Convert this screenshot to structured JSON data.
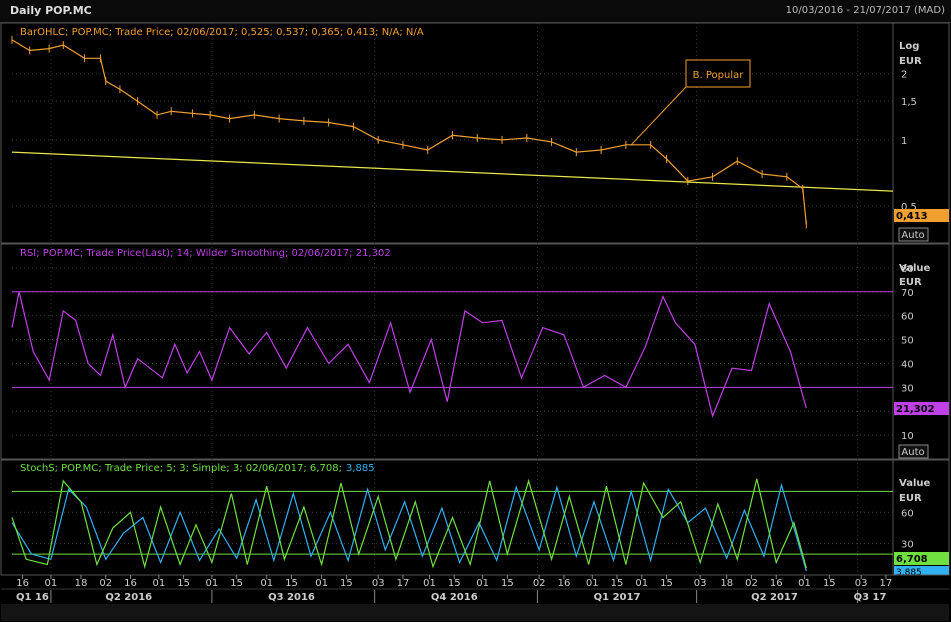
{
  "header": {
    "title": "Daily POP.MC",
    "range": "10/03/2016 - 21/07/2017 (MAD)"
  },
  "colors": {
    "price": "#f0a030",
    "trend": "#e8e84a",
    "rsi": "#c040e8",
    "stoch_k": "#70e040",
    "stoch_d": "#30b0f0",
    "grid": "#3a3a3a"
  },
  "chart_data": [
    {
      "type": "line",
      "subtype": "ohlc",
      "legend": "BarOHLC; POP.MC; Trade Price;  02/06/2017; 0,525; 0,537; 0,365; 0,413; N/A; N/A",
      "axis_title": "Log",
      "unit": "EUR",
      "scale": "log",
      "yticks": [
        "2",
        "1,5",
        "1",
        "0,5"
      ],
      "ytick_values": [
        2,
        1.5,
        1,
        0.5
      ],
      "ylim": [
        0.34,
        3.4
      ],
      "last_value": "0,413",
      "annotation": "B. Popular",
      "auto_button": "Auto",
      "series": [
        {
          "name": "Trade Price",
          "x": [
            "2016-03-10",
            "2016-03-20",
            "2016-03-31",
            "2016-04-08",
            "2016-04-20",
            "2016-04-29",
            "2016-05-02",
            "2016-05-10",
            "2016-05-20",
            "2016-05-31",
            "2016-06-08",
            "2016-06-20",
            "2016-06-30",
            "2016-07-11",
            "2016-07-25",
            "2016-08-08",
            "2016-08-22",
            "2016-09-05",
            "2016-09-19",
            "2016-10-03",
            "2016-10-17",
            "2016-10-31",
            "2016-11-14",
            "2016-11-28",
            "2016-12-12",
            "2016-12-26",
            "2017-01-09",
            "2017-01-23",
            "2017-02-06",
            "2017-02-20",
            "2017-03-06",
            "2017-03-15",
            "2017-03-27",
            "2017-04-10",
            "2017-04-24",
            "2017-05-08",
            "2017-05-22",
            "2017-05-31",
            "2017-06-02"
          ],
          "values": [
            2.85,
            2.55,
            2.6,
            2.7,
            2.35,
            2.35,
            1.85,
            1.7,
            1.5,
            1.3,
            1.35,
            1.32,
            1.3,
            1.25,
            1.3,
            1.25,
            1.22,
            1.2,
            1.15,
            1.0,
            0.95,
            0.9,
            1.05,
            1.02,
            1.0,
            1.02,
            0.98,
            0.88,
            0.9,
            0.95,
            0.95,
            0.82,
            0.65,
            0.68,
            0.8,
            0.7,
            0.68,
            0.6,
            0.413
          ]
        }
      ],
      "trendline": {
        "start": [
          "2016-03-10",
          0.88
        ],
        "end": [
          "2017-07-21",
          0.585
        ]
      }
    },
    {
      "type": "line",
      "legend": "RSI; POP.MC; Trade Price(Last);  14; Wilder Smoothing; 02/06/2017; 21,302",
      "axis_title": "Value",
      "unit": "EUR",
      "yticks": [
        "80",
        "70",
        "60",
        "50",
        "40",
        "30",
        "20",
        "10"
      ],
      "ytick_values": [
        80,
        70,
        60,
        50,
        40,
        30,
        20,
        10
      ],
      "ylim": [
        0,
        90
      ],
      "levels": [
        70,
        30
      ],
      "last_value": "21,302",
      "auto_button": "Auto",
      "series": [
        {
          "name": "RSI",
          "x": [
            "2016-03-10",
            "2016-03-14",
            "2016-03-22",
            "2016-03-31",
            "2016-04-08",
            "2016-04-15",
            "2016-04-22",
            "2016-04-29",
            "2016-05-06",
            "2016-05-13",
            "2016-05-20",
            "2016-05-27",
            "2016-06-03",
            "2016-06-10",
            "2016-06-17",
            "2016-06-24",
            "2016-07-01",
            "2016-07-11",
            "2016-07-22",
            "2016-08-01",
            "2016-08-12",
            "2016-08-24",
            "2016-09-05",
            "2016-09-16",
            "2016-09-28",
            "2016-10-10",
            "2016-10-21",
            "2016-11-02",
            "2016-11-11",
            "2016-11-21",
            "2016-12-01",
            "2016-12-12",
            "2016-12-23",
            "2017-01-04",
            "2017-01-16",
            "2017-01-27",
            "2017-02-08",
            "2017-02-20",
            "2017-03-03",
            "2017-03-13",
            "2017-03-20",
            "2017-03-31",
            "2017-04-10",
            "2017-04-21",
            "2017-05-02",
            "2017-05-12",
            "2017-05-24",
            "2017-06-02"
          ],
          "values": [
            55,
            70,
            45,
            33,
            62,
            58,
            40,
            35,
            52,
            30,
            42,
            38,
            34,
            48,
            36,
            45,
            33,
            55,
            44,
            53,
            38,
            55,
            40,
            48,
            32,
            57,
            28,
            50,
            24,
            62,
            57,
            58,
            34,
            55,
            52,
            30,
            35,
            30,
            47,
            68,
            57,
            48,
            18,
            38,
            37,
            65,
            45,
            21.3
          ]
        }
      ]
    },
    {
      "type": "line",
      "legend": "StochS; POP.MC; Trade Price;  5; 3; Simple; 3; 02/06/2017; 6,708;",
      "legend_extra": "3,885",
      "axis_title": "Value",
      "unit": "EUR",
      "yticks": [
        "60",
        "30"
      ],
      "ytick_values": [
        60,
        30
      ],
      "ylim": [
        0,
        110
      ],
      "levels": [
        80,
        20
      ],
      "last_value": "6,708",
      "last_value_2": "3,885",
      "series": [
        {
          "name": "%K",
          "x": [
            "2016-03-10",
            "2016-03-18",
            "2016-03-30",
            "2016-04-08",
            "2016-04-18",
            "2016-04-27",
            "2016-05-06",
            "2016-05-16",
            "2016-05-24",
            "2016-06-02",
            "2016-06-13",
            "2016-06-22",
            "2016-07-01",
            "2016-07-12",
            "2016-07-21",
            "2016-08-01",
            "2016-08-11",
            "2016-08-22",
            "2016-09-01",
            "2016-09-12",
            "2016-09-22",
            "2016-10-03",
            "2016-10-13",
            "2016-10-24",
            "2016-11-03",
            "2016-11-14",
            "2016-11-24",
            "2016-12-05",
            "2016-12-15",
            "2016-12-27",
            "2017-01-09",
            "2017-01-19",
            "2017-01-30",
            "2017-02-09",
            "2017-02-20",
            "2017-03-02",
            "2017-03-13",
            "2017-03-23",
            "2017-04-03",
            "2017-04-13",
            "2017-04-24",
            "2017-05-05",
            "2017-05-16",
            "2017-05-26",
            "2017-06-02"
          ],
          "values": [
            55,
            15,
            10,
            90,
            70,
            10,
            45,
            60,
            8,
            65,
            10,
            48,
            12,
            78,
            10,
            85,
            15,
            65,
            10,
            88,
            20,
            75,
            15,
            70,
            8,
            55,
            10,
            90,
            20,
            90,
            15,
            75,
            10,
            85,
            10,
            88,
            55,
            70,
            12,
            68,
            15,
            92,
            12,
            50,
            6.7
          ]
        },
        {
          "name": "%D",
          "x": [
            "2016-03-10",
            "2016-03-21",
            "2016-04-01",
            "2016-04-11",
            "2016-04-21",
            "2016-05-02",
            "2016-05-12",
            "2016-05-23",
            "2016-06-02",
            "2016-06-13",
            "2016-06-24",
            "2016-07-05",
            "2016-07-15",
            "2016-07-26",
            "2016-08-05",
            "2016-08-16",
            "2016-08-26",
            "2016-09-06",
            "2016-09-16",
            "2016-09-27",
            "2016-10-07",
            "2016-10-18",
            "2016-10-28",
            "2016-11-08",
            "2016-11-18",
            "2016-11-29",
            "2016-12-09",
            "2016-12-20",
            "2017-01-02",
            "2017-01-12",
            "2017-01-23",
            "2017-02-02",
            "2017-02-13",
            "2017-02-23",
            "2017-03-06",
            "2017-03-16",
            "2017-03-27",
            "2017-04-06",
            "2017-04-18",
            "2017-04-28",
            "2017-05-09",
            "2017-05-19",
            "2017-05-31",
            "2017-06-02"
          ],
          "values": [
            50,
            20,
            15,
            82,
            65,
            15,
            40,
            55,
            12,
            60,
            14,
            44,
            16,
            72,
            14,
            78,
            18,
            60,
            14,
            82,
            24,
            70,
            18,
            64,
            12,
            50,
            14,
            84,
            24,
            84,
            18,
            70,
            14,
            80,
            14,
            82,
            50,
            64,
            16,
            62,
            18,
            86,
            16,
            3.9
          ]
        }
      ]
    }
  ],
  "xaxis": {
    "day_ticks": [
      {
        "d": "2016-03-16",
        "l": "16"
      },
      {
        "d": "2016-04-01",
        "l": "01"
      },
      {
        "d": "2016-04-18",
        "l": "18"
      },
      {
        "d": "2016-05-02",
        "l": "02"
      },
      {
        "d": "2016-05-16",
        "l": "16"
      },
      {
        "d": "2016-06-01",
        "l": "01"
      },
      {
        "d": "2016-06-15",
        "l": "15"
      },
      {
        "d": "2016-07-01",
        "l": "01"
      },
      {
        "d": "2016-07-15",
        "l": "15"
      },
      {
        "d": "2016-08-01",
        "l": "01"
      },
      {
        "d": "2016-08-15",
        "l": "15"
      },
      {
        "d": "2016-09-01",
        "l": "01"
      },
      {
        "d": "2016-09-15",
        "l": "15"
      },
      {
        "d": "2016-10-03",
        "l": "03"
      },
      {
        "d": "2016-10-17",
        "l": "17"
      },
      {
        "d": "2016-11-01",
        "l": "01"
      },
      {
        "d": "2016-11-15",
        "l": "15"
      },
      {
        "d": "2016-12-01",
        "l": "01"
      },
      {
        "d": "2016-12-15",
        "l": "15"
      },
      {
        "d": "2017-01-02",
        "l": "02"
      },
      {
        "d": "2017-01-16",
        "l": "16"
      },
      {
        "d": "2017-02-01",
        "l": "01"
      },
      {
        "d": "2017-02-15",
        "l": "15"
      },
      {
        "d": "2017-03-01",
        "l": "01"
      },
      {
        "d": "2017-03-15",
        "l": "15"
      },
      {
        "d": "2017-04-03",
        "l": "03"
      },
      {
        "d": "2017-04-18",
        "l": "18"
      },
      {
        "d": "2017-05-02",
        "l": "02"
      },
      {
        "d": "2017-05-16",
        "l": "16"
      },
      {
        "d": "2017-06-01",
        "l": "01"
      },
      {
        "d": "2017-06-15",
        "l": "15"
      },
      {
        "d": "2017-07-03",
        "l": "03"
      },
      {
        "d": "2017-07-17",
        "l": "17"
      }
    ],
    "quarter_labels": [
      {
        "d": "2016-03-10",
        "l": "Q1 16"
      },
      {
        "d": "2016-05-15",
        "l": "Q2 2016"
      },
      {
        "d": "2016-08-15",
        "l": "Q3 2016"
      },
      {
        "d": "2016-11-15",
        "l": "Q4 2016"
      },
      {
        "d": "2017-02-15",
        "l": "Q1 2017"
      },
      {
        "d": "2017-05-15",
        "l": "Q2 2017"
      },
      {
        "d": "2017-07-01",
        "l": "Q3 17"
      }
    ],
    "quarter_bounds": [
      "2016-04-01",
      "2016-07-01",
      "2016-10-01",
      "2017-01-01",
      "2017-04-01",
      "2017-07-01"
    ]
  }
}
